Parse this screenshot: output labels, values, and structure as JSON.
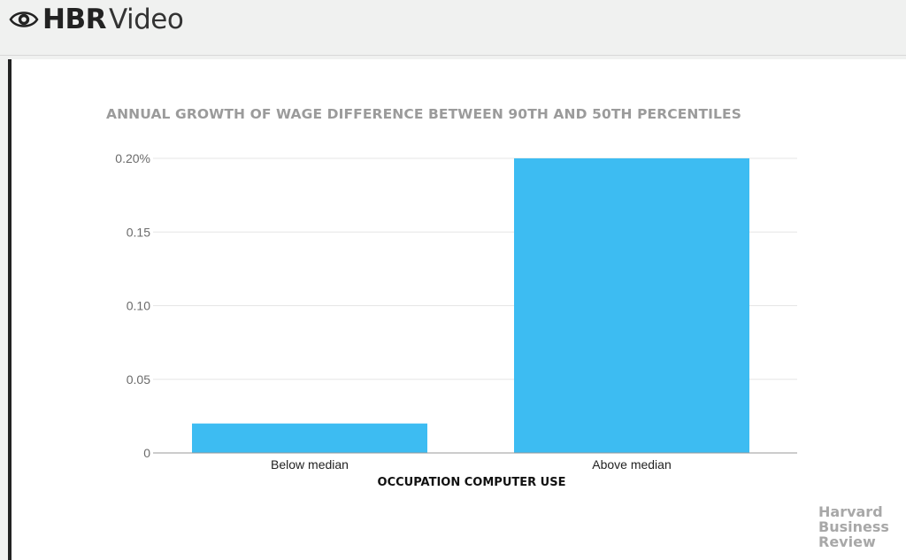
{
  "header": {
    "brand_bold": "HBR",
    "brand_light": "Video",
    "logo_icon": "eye-icon"
  },
  "watermark": [
    "Harvard",
    "Business",
    "Review"
  ],
  "colors": {
    "bar": "#3dbcf2",
    "title": "#9b9b9b",
    "grid": "#e6e6e6",
    "tick": "#6b6b6b"
  },
  "chart_data": {
    "type": "bar",
    "title": "ANNUAL GROWTH OF WAGE DIFFERENCE BETWEEN 90TH AND 50TH PERCENTILES",
    "xlabel": "OCCUPATION COMPUTER USE",
    "ylabel": "",
    "categories": [
      "Below median",
      "Above median"
    ],
    "values": [
      0.02,
      0.2
    ],
    "ylim": [
      0,
      0.2
    ],
    "yticks": [
      0,
      0.05,
      0.1,
      0.15,
      0.2
    ],
    "ytick_labels": [
      "0",
      "0.05",
      "0.10",
      "0.15",
      "0.20%"
    ],
    "grid": true,
    "legend": "none"
  }
}
